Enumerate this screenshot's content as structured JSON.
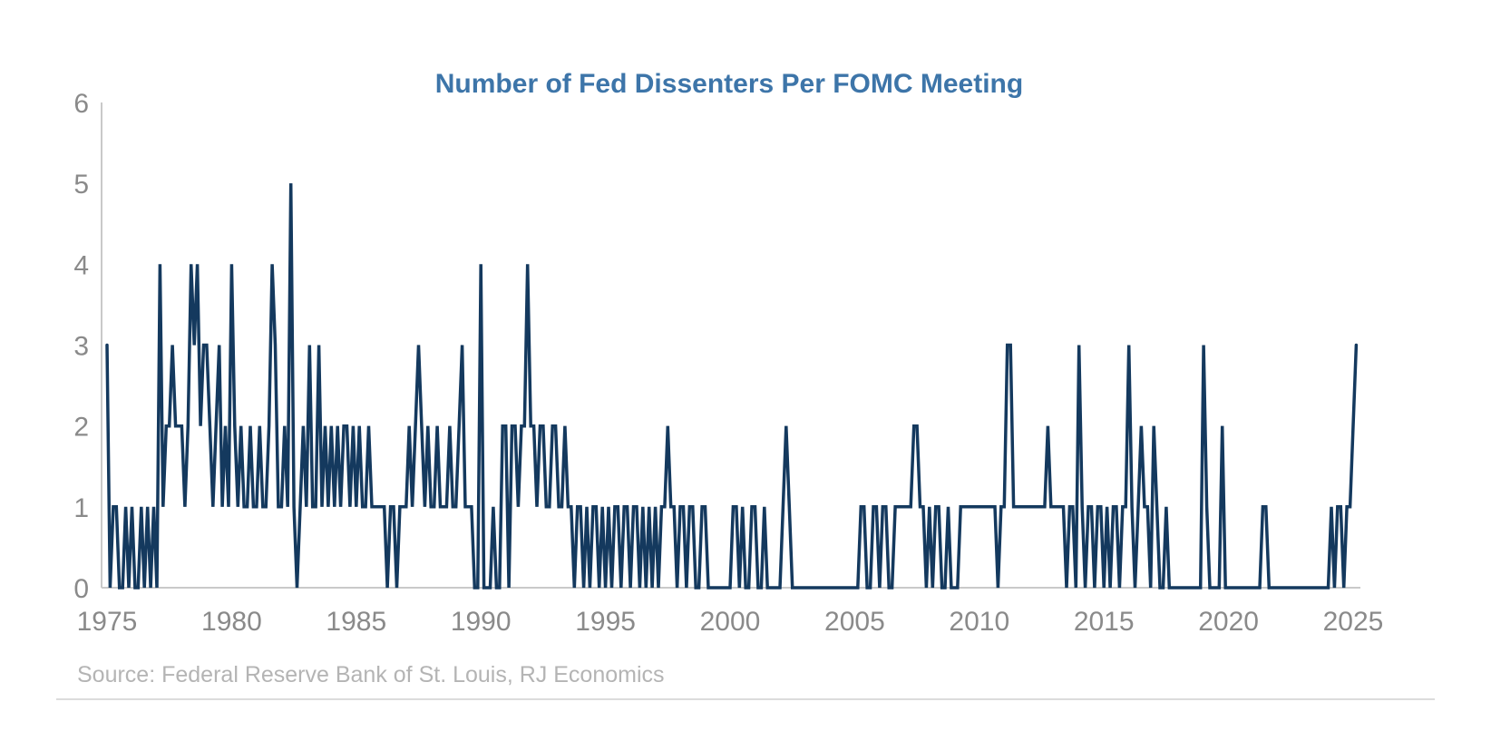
{
  "title": "Number of Fed Dissenters Per FOMC Meeting",
  "source": "Source: Federal Reserve Bank of St. Louis, RJ Economics",
  "colors": {
    "line": "#14395e",
    "title": "#3d75a9",
    "axis": "#c9c9c9",
    "tick_label": "#8a8a8a",
    "source": "#b4b4b4",
    "divider": "#dcdcdc",
    "background": "#ffffff"
  },
  "chart_data": {
    "type": "line",
    "title": "Number of Fed Dissenters Per FOMC Meeting",
    "xlabel": "",
    "ylabel": "",
    "grid": false,
    "legend": "none",
    "xlim": [
      1975,
      2025.3
    ],
    "ylim": [
      0,
      6
    ],
    "x_ticks": [
      1975,
      1980,
      1985,
      1990,
      1995,
      2000,
      2005,
      2010,
      2015,
      2020,
      2025
    ],
    "y_ticks": [
      0,
      1,
      2,
      3,
      4,
      5,
      6
    ],
    "series": [
      {
        "name": "Fed dissenters per FOMC meeting",
        "start_year": 1975,
        "meetings_per_year": 8,
        "values_by_year": [
          [
            3,
            0,
            1,
            1,
            0,
            0,
            1,
            0
          ],
          [
            1,
            0,
            0,
            1,
            0,
            1,
            0,
            1
          ],
          [
            0,
            4,
            1,
            2,
            2,
            3,
            2,
            2
          ],
          [
            2,
            1,
            2,
            4,
            3,
            4,
            2,
            3
          ],
          [
            3,
            2,
            1,
            2,
            3,
            1,
            2,
            1
          ],
          [
            4,
            2,
            1,
            2,
            1,
            1,
            2,
            1
          ],
          [
            1,
            2,
            1,
            1,
            2,
            4,
            3,
            1
          ],
          [
            1,
            2,
            1,
            5,
            1,
            0,
            1,
            2
          ],
          [
            1,
            3,
            1,
            1,
            3,
            1,
            2,
            1
          ],
          [
            2,
            1,
            2,
            1,
            2,
            2,
            1,
            2
          ],
          [
            1,
            2,
            1,
            1,
            2,
            1,
            1,
            1
          ],
          [
            1,
            1,
            0,
            1,
            1,
            0,
            1,
            1
          ],
          [
            1,
            2,
            1,
            2,
            3,
            2,
            1,
            2
          ],
          [
            1,
            1,
            2,
            1,
            1,
            1,
            2,
            1
          ],
          [
            1,
            2,
            3,
            1,
            1,
            1,
            0,
            0
          ],
          [
            4,
            0,
            0,
            0,
            1,
            0,
            0,
            2
          ],
          [
            2,
            0,
            2,
            2,
            1,
            2,
            2,
            4
          ],
          [
            2,
            2,
            1,
            2,
            2,
            1,
            1,
            2
          ],
          [
            2,
            1,
            1,
            2,
            1,
            1,
            0,
            1
          ],
          [
            1,
            0,
            1,
            0,
            1,
            1,
            0,
            1
          ],
          [
            0,
            1,
            0,
            1,
            1,
            0,
            1,
            1
          ],
          [
            0,
            1,
            1,
            0,
            1,
            0,
            1,
            0
          ],
          [
            1,
            0,
            1,
            1,
            2,
            1,
            1,
            0
          ],
          [
            1,
            1,
            0,
            1,
            1,
            0,
            0,
            1
          ],
          [
            1,
            0,
            0,
            0,
            0,
            0,
            0,
            0
          ],
          [
            0,
            1,
            1,
            0,
            1,
            0,
            0,
            1
          ],
          [
            1,
            0,
            0,
            1,
            0,
            0,
            0,
            0
          ],
          [
            0,
            1,
            2,
            1,
            0,
            0,
            0,
            0
          ],
          [
            0,
            0,
            0,
            0,
            0,
            0,
            0,
            0
          ],
          [
            0,
            0,
            0,
            0,
            0,
            0,
            0,
            0
          ],
          [
            0,
            0,
            1,
            1,
            0,
            0,
            1,
            1
          ],
          [
            0,
            1,
            1,
            0,
            0,
            1,
            1,
            1
          ],
          [
            1,
            1,
            1,
            2,
            2,
            1,
            1,
            0
          ],
          [
            1,
            0,
            1,
            1,
            0,
            0,
            1,
            0
          ],
          [
            0,
            0,
            1,
            1,
            1,
            1,
            1,
            1
          ],
          [
            1,
            1,
            1,
            1,
            1,
            1,
            0,
            1
          ],
          [
            1,
            3,
            3,
            1,
            1,
            1,
            1,
            1
          ],
          [
            1,
            1,
            1,
            1,
            1,
            1,
            2,
            1
          ],
          [
            1,
            1,
            1,
            1,
            0,
            1,
            1,
            0
          ],
          [
            3,
            1,
            0,
            1,
            1,
            0,
            1,
            1
          ],
          [
            0,
            1,
            0,
            1,
            1,
            0,
            1,
            1
          ],
          [
            3,
            1,
            0,
            1,
            2,
            1,
            1,
            0
          ],
          [
            2,
            1,
            0,
            0,
            1,
            0,
            0,
            0
          ],
          [
            0,
            0,
            0,
            0,
            0,
            0,
            0,
            0
          ],
          [
            3,
            1,
            0,
            0,
            0,
            0,
            2,
            0
          ],
          [
            0,
            0,
            0,
            0,
            0,
            0,
            0,
            0
          ],
          [
            0,
            0,
            0,
            1,
            1,
            0,
            0,
            0
          ],
          [
            0,
            0,
            0,
            0,
            0,
            0,
            0,
            0
          ],
          [
            0,
            0,
            0,
            0,
            0,
            0,
            0,
            0
          ],
          [
            0,
            1,
            0,
            1,
            1,
            0,
            1,
            1
          ],
          [
            2,
            3
          ]
        ]
      }
    ]
  }
}
